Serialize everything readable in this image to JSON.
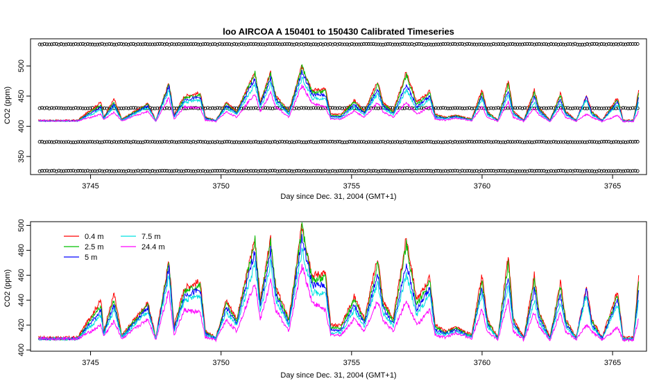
{
  "chart_data": [
    {
      "type": "line",
      "title": "loo   AIRCOA  A    150401  to  150430   Calibrated Timeseries",
      "xlabel": "Day since Dec. 31, 2004 (GMT+1)",
      "ylabel": "CO2 (ppm)",
      "xlim": [
        3742.7,
        3766.3
      ],
      "ylim": [
        320,
        545
      ],
      "x_ticks": [
        "3745",
        "3750",
        "3755",
        "3760",
        "3765"
      ],
      "x_tick_values": [
        3745,
        3750,
        3755,
        3760,
        3765
      ],
      "y_ticks": [
        "350",
        "400",
        "450",
        "500"
      ],
      "y_tick_values": [
        350,
        400,
        450,
        500
      ],
      "grid": false,
      "calibration_levels": [
        536,
        430,
        374,
        326
      ],
      "calibration_marker": "open-circle",
      "series_colors": [
        "#ff0000",
        "#00c000",
        "#0000ff",
        "#00e0e0",
        "#ff00ff"
      ]
    },
    {
      "type": "line",
      "xlabel": "Day since Dec. 31, 2004 (GMT+1)",
      "ylabel": "CO2 (ppm)",
      "xlim": [
        3742.7,
        3766.3
      ],
      "ylim": [
        399,
        503
      ],
      "x_ticks": [
        "3745",
        "3750",
        "3755",
        "3760",
        "3765"
      ],
      "x_tick_values": [
        3745,
        3750,
        3755,
        3760,
        3765
      ],
      "y_ticks": [
        "400",
        "420",
        "440",
        "460",
        "480",
        "500"
      ],
      "y_tick_values": [
        400,
        420,
        440,
        460,
        480,
        500
      ],
      "grid": false,
      "legend_placement": "top-left",
      "x": [
        3743.0,
        3744.5,
        3745.1,
        3745.4,
        3745.5,
        3745.9,
        3746.2,
        3747.2,
        3747.5,
        3748.0,
        3748.2,
        3748.6,
        3749.2,
        3749.4,
        3749.8,
        3750.2,
        3750.6,
        3751.3,
        3751.5,
        3751.9,
        3752.1,
        3752.6,
        3753.1,
        3753.5,
        3754.0,
        3754.2,
        3754.6,
        3755.1,
        3755.5,
        3756.0,
        3756.2,
        3756.6,
        3757.1,
        3757.5,
        3758.0,
        3758.2,
        3758.6,
        3759.0,
        3759.6,
        3760.0,
        3760.2,
        3760.6,
        3761.0,
        3761.2,
        3761.6,
        3762.0,
        3762.2,
        3762.6,
        3763.0,
        3763.2,
        3763.6,
        3764.0,
        3764.2,
        3764.6,
        3765.2,
        3765.4,
        3765.8,
        3766.0
      ],
      "series": [
        {
          "name": "0.4 m",
          "color": "#ff0000",
          "values": [
            410,
            410,
            430,
            440,
            415,
            445,
            412,
            438,
            410,
            472,
            420,
            450,
            455,
            415,
            410,
            440,
            425,
            490,
            440,
            488,
            450,
            425,
            500,
            460,
            462,
            420,
            420,
            443,
            425,
            475,
            440,
            425,
            490,
            440,
            458,
            420,
            415,
            418,
            412,
            460,
            425,
            410,
            475,
            425,
            410,
            460,
            430,
            410,
            455,
            425,
            410,
            450,
            425,
            410,
            448,
            410,
            410,
            460
          ]
        },
        {
          "name": "2.5 m",
          "color": "#00c000",
          "values": [
            409,
            409,
            427,
            436,
            414,
            440,
            411,
            436,
            409,
            470,
            418,
            447,
            452,
            414,
            409,
            437,
            423,
            488,
            437,
            486,
            447,
            423,
            498,
            456,
            458,
            418,
            418,
            440,
            423,
            470,
            437,
            423,
            485,
            436,
            455,
            418,
            414,
            417,
            411,
            455,
            423,
            409,
            470,
            423,
            409,
            455,
            428,
            409,
            450,
            423,
            409,
            445,
            423,
            409,
            444,
            409,
            409,
            455
          ]
        },
        {
          "name": "5 m",
          "color": "#0000ff",
          "values": [
            409,
            409,
            424,
            432,
            413,
            436,
            410,
            434,
            409,
            466,
            416,
            444,
            448,
            413,
            409,
            434,
            421,
            480,
            434,
            480,
            444,
            421,
            490,
            452,
            452,
            416,
            416,
            436,
            421,
            462,
            434,
            421,
            470,
            432,
            450,
            416,
            413,
            416,
            410,
            450,
            421,
            409,
            460,
            421,
            409,
            448,
            425,
            409,
            444,
            421,
            409,
            449,
            421,
            409,
            440,
            409,
            409,
            448
          ]
        },
        {
          "name": "7.5 m",
          "color": "#00e0e0",
          "values": [
            409,
            409,
            421,
            428,
            412,
            432,
            410,
            431,
            409,
            460,
            414,
            440,
            444,
            412,
            409,
            430,
            419,
            470,
            430,
            470,
            440,
            419,
            480,
            446,
            446,
            414,
            414,
            432,
            419,
            455,
            430,
            419,
            460,
            428,
            445,
            414,
            412,
            415,
            410,
            445,
            419,
            409,
            452,
            419,
            409,
            440,
            422,
            409,
            438,
            419,
            409,
            445,
            419,
            409,
            436,
            409,
            409,
            440
          ]
        },
        {
          "name": "24.4 m",
          "color": "#ff00ff",
          "values": [
            409,
            409,
            416,
            420,
            411,
            423,
            409,
            425,
            408,
            448,
            412,
            432,
            430,
            410,
            408,
            424,
            415,
            455,
            424,
            455,
            432,
            415,
            468,
            438,
            432,
            412,
            412,
            425,
            415,
            440,
            424,
            415,
            440,
            420,
            432,
            412,
            410,
            414,
            409,
            433,
            415,
            408,
            440,
            415,
            408,
            430,
            418,
            408,
            430,
            415,
            408,
            420,
            415,
            408,
            418,
            408,
            408,
            425
          ]
        }
      ]
    }
  ]
}
